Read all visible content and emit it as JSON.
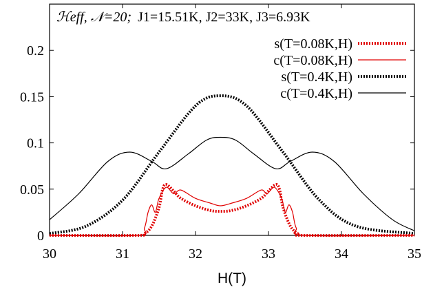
{
  "chart_data": {
    "type": "line",
    "title": "",
    "annotation": {
      "lead": "ℋeff, 𝒩=20;",
      "body": "J1=15.51K, J2=33K, J3=6.93K"
    },
    "xlabel": "H(T)",
    "ylabel": "",
    "xlim": [
      30,
      35
    ],
    "ylim": [
      0,
      0.25
    ],
    "x_ticks": [
      "30",
      "31",
      "32",
      "33",
      "34",
      "35"
    ],
    "y_ticks": [
      "0",
      "0.05",
      "0.1",
      "0.15",
      "0.2"
    ],
    "y_tick_values": [
      0,
      0.05,
      0.1,
      0.15,
      0.2
    ],
    "x_tick_values": [
      30,
      31,
      32,
      33,
      34,
      35
    ],
    "grid": false,
    "legend_position": "top-right",
    "series": [
      {
        "name": "s(T=0.08K,H)",
        "color": "#e00000",
        "style": "dotted-thick",
        "points": [
          [
            30,
            0
          ],
          [
            31.2,
            0
          ],
          [
            31.3,
            0.002
          ],
          [
            31.4,
            0.01
          ],
          [
            31.5,
            0.03
          ],
          [
            31.55,
            0.05
          ],
          [
            31.6,
            0.055
          ],
          [
            31.7,
            0.048
          ],
          [
            31.8,
            0.04
          ],
          [
            32.0,
            0.032
          ],
          [
            32.2,
            0.027
          ],
          [
            32.34,
            0.026
          ],
          [
            32.5,
            0.027
          ],
          [
            32.7,
            0.032
          ],
          [
            32.9,
            0.04
          ],
          [
            33.0,
            0.048
          ],
          [
            33.1,
            0.055
          ],
          [
            33.15,
            0.05
          ],
          [
            33.2,
            0.03
          ],
          [
            33.3,
            0.01
          ],
          [
            33.4,
            0.002
          ],
          [
            33.5,
            0
          ],
          [
            35,
            0
          ]
        ]
      },
      {
        "name": "c(T=0.08K,H)",
        "color": "#e00000",
        "style": "solid-thin",
        "points": [
          [
            30,
            0
          ],
          [
            31.2,
            0
          ],
          [
            31.3,
            0.008
          ],
          [
            31.35,
            0.025
          ],
          [
            31.4,
            0.033
          ],
          [
            31.45,
            0.025
          ],
          [
            31.5,
            0.04
          ],
          [
            31.6,
            0.052
          ],
          [
            31.7,
            0.045
          ],
          [
            31.8,
            0.049
          ],
          [
            32.0,
            0.04
          ],
          [
            32.2,
            0.035
          ],
          [
            32.34,
            0.032
          ],
          [
            32.5,
            0.035
          ],
          [
            32.7,
            0.04
          ],
          [
            32.9,
            0.049
          ],
          [
            32.98,
            0.045
          ],
          [
            33.08,
            0.052
          ],
          [
            33.18,
            0.04
          ],
          [
            33.23,
            0.025
          ],
          [
            33.28,
            0.033
          ],
          [
            33.33,
            0.025
          ],
          [
            33.38,
            0.008
          ],
          [
            33.5,
            0
          ],
          [
            35,
            0
          ]
        ]
      },
      {
        "name": "s(T=0.4K,H)",
        "color": "#000000",
        "style": "dotted-thick",
        "points": [
          [
            30,
            0.002
          ],
          [
            30.5,
            0.01
          ],
          [
            31.0,
            0.038
          ],
          [
            31.5,
            0.09
          ],
          [
            32.0,
            0.14
          ],
          [
            32.34,
            0.151
          ],
          [
            32.7,
            0.14
          ],
          [
            33.2,
            0.09
          ],
          [
            33.7,
            0.038
          ],
          [
            34.2,
            0.01
          ],
          [
            35,
            0.002
          ]
        ]
      },
      {
        "name": "c(T=0.4K,H)",
        "color": "#000000",
        "style": "solid-thin",
        "points": [
          [
            30,
            0.017
          ],
          [
            30.4,
            0.045
          ],
          [
            30.8,
            0.08
          ],
          [
            31.1,
            0.09
          ],
          [
            31.4,
            0.08
          ],
          [
            31.6,
            0.072
          ],
          [
            31.9,
            0.088
          ],
          [
            32.15,
            0.103
          ],
          [
            32.34,
            0.106
          ],
          [
            32.55,
            0.103
          ],
          [
            32.8,
            0.088
          ],
          [
            33.1,
            0.072
          ],
          [
            33.3,
            0.08
          ],
          [
            33.6,
            0.09
          ],
          [
            33.9,
            0.08
          ],
          [
            34.3,
            0.045
          ],
          [
            34.7,
            0.017
          ],
          [
            35,
            0.005
          ]
        ]
      }
    ]
  }
}
